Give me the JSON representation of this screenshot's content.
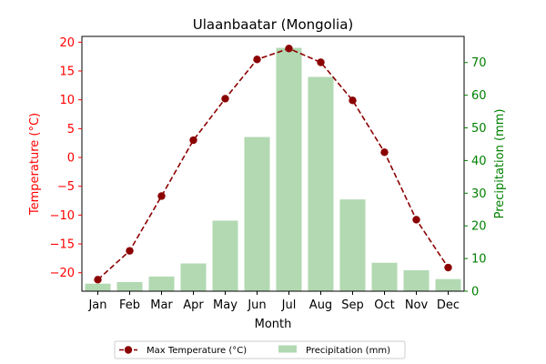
{
  "chart_data": {
    "type": "bar+line",
    "title": "Ulaanbaatar (Mongolia)",
    "xlabel": "Month",
    "categories": [
      "Jan",
      "Feb",
      "Mar",
      "Apr",
      "May",
      "Jun",
      "Jul",
      "Aug",
      "Sep",
      "Oct",
      "Nov",
      "Dec"
    ],
    "left_axis": {
      "label": "Temperature (°C)",
      "ylim": [
        -23.2,
        21
      ],
      "ticks": [
        -20,
        -15,
        -10,
        -5,
        0,
        5,
        10,
        15,
        20
      ],
      "color": "#ff0000"
    },
    "right_axis": {
      "label": "Precipitation (mm)",
      "ylim": [
        0,
        78
      ],
      "ticks": [
        0,
        10,
        20,
        30,
        40,
        50,
        60,
        70
      ],
      "color": "#008000"
    },
    "series": [
      {
        "name": "Max Temperature (°C)",
        "kind": "line",
        "axis": "left",
        "color": "#8b0000",
        "style": "dashed",
        "marker": "circle",
        "values": [
          -21.2,
          -16.2,
          -6.7,
          3.0,
          10.2,
          17.0,
          18.9,
          16.5,
          9.9,
          0.9,
          -10.8,
          -19.1
        ]
      },
      {
        "name": "Precipitation (mm)",
        "kind": "bar",
        "axis": "right",
        "color": "#b2d9b2",
        "values": [
          2.3,
          2.8,
          4.5,
          8.5,
          21.6,
          47.2,
          74.5,
          65.6,
          28.1,
          8.7,
          6.4,
          3.7
        ]
      }
    ],
    "legend_position": "bottom-center",
    "grid": false
  }
}
